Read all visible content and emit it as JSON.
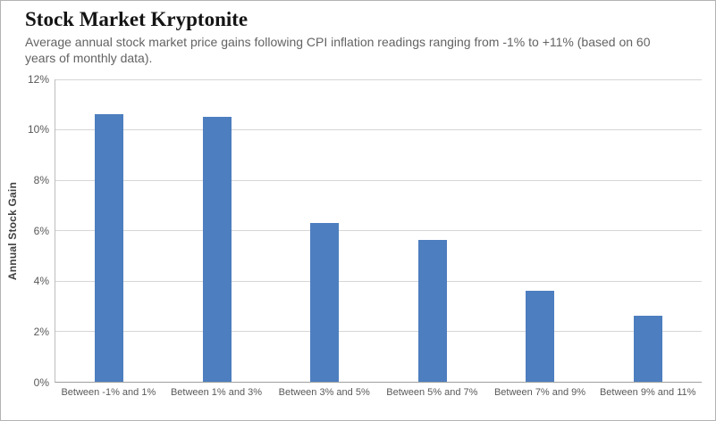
{
  "header": {
    "title": "Stock Market Kryptonite",
    "subtitle": "Average annual stock market price gains following CPI inflation readings ranging from -1% to +11% (based on 60 years of monthly data)."
  },
  "chart_data": {
    "type": "bar",
    "title": "Stock Market Kryptonite",
    "subtitle": "Average annual stock market price gains following CPI inflation readings ranging from -1% to +11% (based on 60 years of monthly data).",
    "categories": [
      "Between -1% and 1%",
      "Between 1% and 3%",
      "Between 3% and 5%",
      "Between 5% and 7%",
      "Between 7% and 9%",
      "Between 9% and 11%"
    ],
    "values": [
      10.6,
      10.5,
      6.3,
      5.6,
      3.6,
      2.6
    ],
    "xlabel": "",
    "ylabel": "Annual Stock Gain",
    "ylim": [
      0,
      12
    ],
    "ytick_step": 2,
    "ytick_labels": [
      "0%",
      "2%",
      "4%",
      "6%",
      "8%",
      "10%",
      "12%"
    ],
    "bar_color": "#4d7ebf",
    "grid": true,
    "legend": false
  }
}
